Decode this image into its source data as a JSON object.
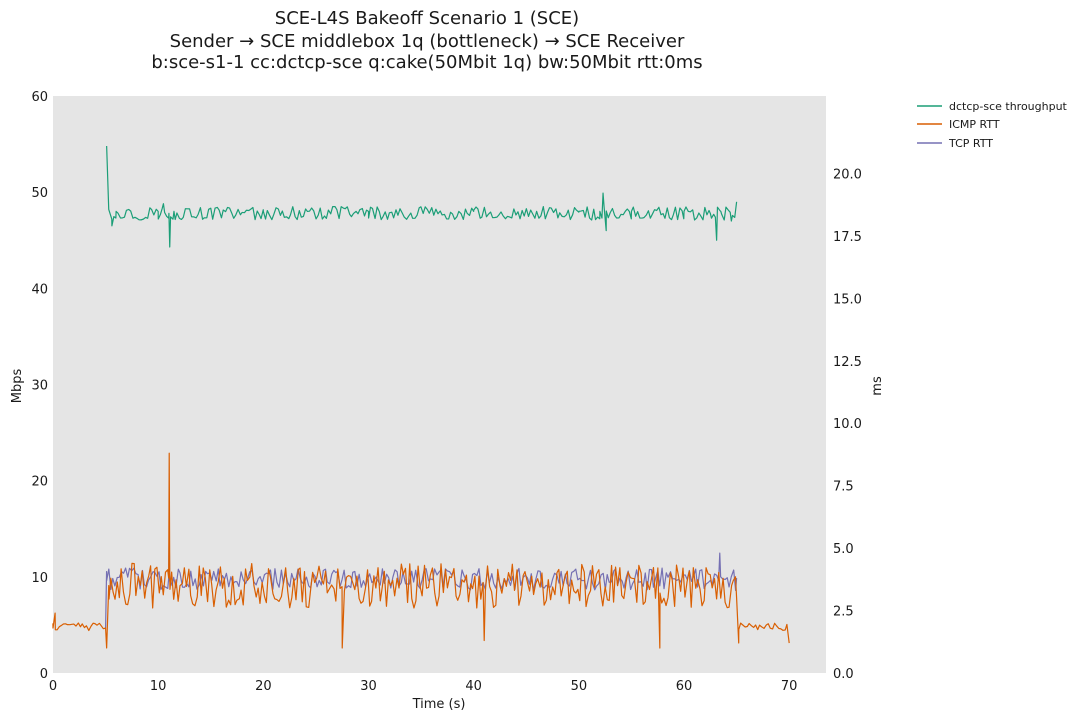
{
  "chart_data": {
    "type": "line",
    "title_lines": [
      "SCE-L4S Bakeoff Scenario 1 (SCE)",
      "Sender → SCE middlebox 1q (bottleneck) → SCE Receiver",
      "b:sce-s1-1 cc:dctcp-sce q:cake(50Mbit 1q) bw:50Mbit rtt:0ms"
    ],
    "xlabel": "Time (s)",
    "ylabel_left": "Mbps",
    "ylabel_right": "ms",
    "xlim": [
      0,
      73.5
    ],
    "ylim_left": [
      0,
      60
    ],
    "ylim_right": [
      0,
      23.1
    ],
    "xticks": [
      0,
      10,
      20,
      30,
      40,
      50,
      60,
      70
    ],
    "yticks_left": [
      0,
      10,
      20,
      30,
      40,
      50,
      60
    ],
    "yticks_right": [
      0.0,
      2.5,
      5.0,
      7.5,
      10.0,
      12.5,
      15.0,
      17.5,
      20.0
    ],
    "yticks_right_labels": [
      "0.0",
      "2.5",
      "5.0",
      "7.5",
      "10.0",
      "12.5",
      "15.0",
      "17.5",
      "20.0"
    ],
    "grid": false,
    "legend_position": "upper-right-outside",
    "background": "#e5e5e5",
    "series": [
      {
        "name": "dctcp-sce throughput",
        "axis": "left",
        "color": "#1b9e77",
        "x": [
          5.1,
          5.3,
          5.6,
          6.0,
          10.0,
          10.5,
          11.0,
          11.1,
          11.5,
          20.0,
          30.0,
          40.0,
          50.0,
          52.0,
          52.3,
          52.6,
          55.0,
          60.0,
          62.5,
          63.1,
          63.5,
          64.5,
          65.0
        ],
        "values": [
          54.8,
          48.2,
          46.5,
          48.0,
          48.0,
          48.8,
          47.3,
          44.3,
          48.0,
          48.0,
          48.0,
          48.0,
          48.0,
          48.0,
          49.9,
          46.0,
          48.0,
          48.0,
          47.8,
          45.0,
          48.0,
          47.0,
          49.0
        ],
        "noise": {
          "x_start": 5.6,
          "x_end": 65.0,
          "step": 0.2,
          "mean": 47.8,
          "amp": 0.7
        }
      },
      {
        "name": "ICMP RTT",
        "axis": "right",
        "color": "#d95f02",
        "x": [
          0,
          0.2,
          5.0,
          5.1,
          5.3,
          11.0,
          11.05,
          11.1,
          27.5,
          41.0,
          57.7,
          65.0,
          65.2,
          70.0
        ],
        "values": [
          1.8,
          2.4,
          1.8,
          1.0,
          3.5,
          3.8,
          8.8,
          3.8,
          1.0,
          1.3,
          1.0,
          3.0,
          1.2,
          1.2
        ],
        "noise": [
          {
            "x_start": 0,
            "x_end": 5.0,
            "step": 0.2,
            "mean": 1.85,
            "amp": 0.15
          },
          {
            "x_start": 5.3,
            "x_end": 65.0,
            "step": 0.2,
            "mean": 3.5,
            "amp": 0.9
          },
          {
            "x_start": 65.2,
            "x_end": 70.0,
            "step": 0.2,
            "mean": 1.85,
            "amp": 0.15
          }
        ]
      },
      {
        "name": "TCP RTT",
        "axis": "right",
        "color": "#7570b3",
        "x": [
          5.0,
          5.1,
          11.0,
          11.05,
          11.1,
          63.3,
          63.4,
          65.0
        ],
        "values": [
          1.8,
          3.7,
          3.8,
          5.6,
          3.8,
          3.8,
          4.8,
          3.8
        ],
        "noise": {
          "x_start": 5.1,
          "x_end": 65.0,
          "step": 0.2,
          "mean": 3.75,
          "amp": 0.45
        }
      }
    ]
  }
}
